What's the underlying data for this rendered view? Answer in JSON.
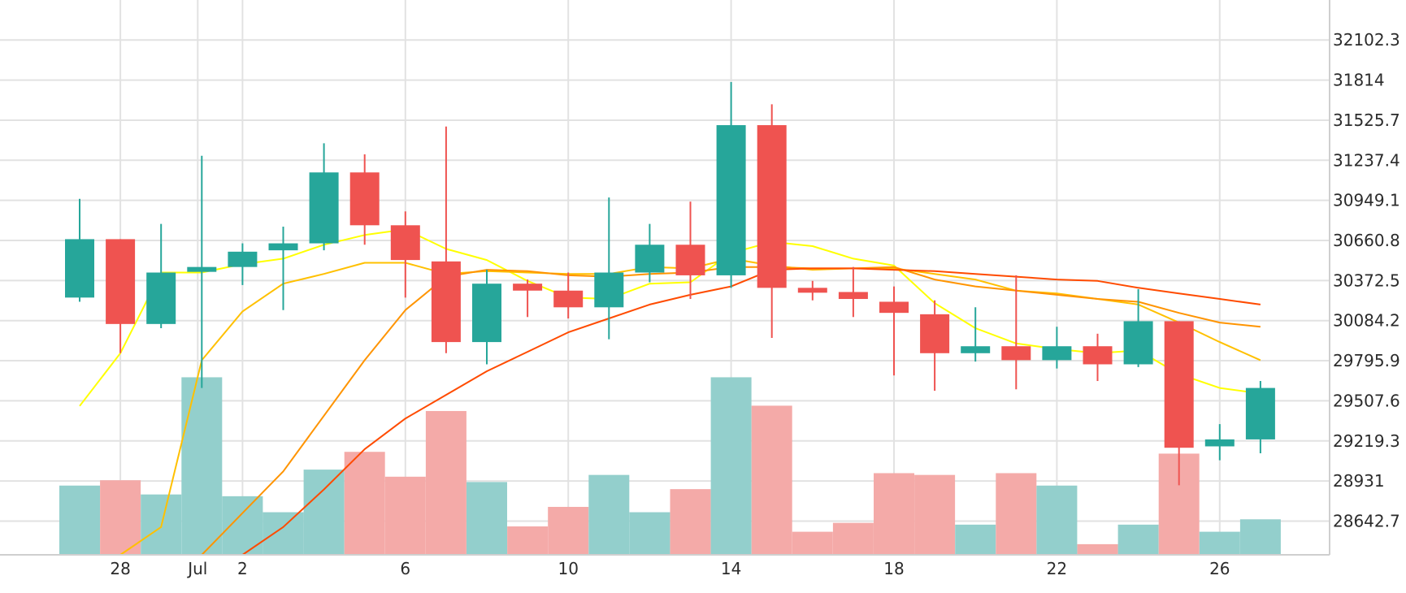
{
  "chart_data": {
    "type": "candlestick",
    "colors": {
      "up": "#26a69a",
      "down": "#ef5350",
      "volume_up": "#93cfcc",
      "volume_down": "#f4aaa8",
      "grid": "#e2e2e2",
      "ma": [
        "#ffff00",
        "#ffc000",
        "#ff9400",
        "#ff4b00"
      ]
    },
    "x_ticks": [
      {
        "label": "28",
        "index": 1
      },
      {
        "label": "Jul",
        "index": 3
      },
      {
        "label": "2",
        "index": 4
      },
      {
        "label": "6",
        "index": 8
      },
      {
        "label": "10",
        "index": 12
      },
      {
        "label": "14",
        "index": 16
      },
      {
        "label": "18",
        "index": 20
      },
      {
        "label": "22",
        "index": 24
      },
      {
        "label": "26",
        "index": 28
      }
    ],
    "y_ticks": [
      "32102.3",
      "31814",
      "31525.7",
      "31237.4",
      "30949.1",
      "30660.8",
      "30372.5",
      "30084.2",
      "29795.9",
      "29507.6",
      "29219.3",
      "28931",
      "28642.7"
    ],
    "y_range": [
      28400,
      32390
    ],
    "volume_max_fraction": 0.32,
    "candles": [
      {
        "date": "Jun 27",
        "open": 30250,
        "high": 30960,
        "low": 30220,
        "close": 30670,
        "volume": 0.39
      },
      {
        "date": "Jun 28",
        "open": 30670,
        "high": 30670,
        "low": 29850,
        "close": 30060,
        "volume": 0.42
      },
      {
        "date": "Jun 29",
        "open": 30060,
        "high": 30780,
        "low": 30030,
        "close": 30430,
        "volume": 0.34
      },
      {
        "date": "Jun 30",
        "open": 30440,
        "high": 31270,
        "low": 29600,
        "close": 30470,
        "volume": 1.0
      },
      {
        "date": "Jul 1",
        "open": 30470,
        "high": 30640,
        "low": 30340,
        "close": 30580,
        "volume": 0.33
      },
      {
        "date": "Jul 2",
        "open": 30590,
        "high": 30760,
        "low": 30160,
        "close": 30640,
        "volume": 0.24
      },
      {
        "date": "Jul 3",
        "open": 30640,
        "high": 31360,
        "low": 30590,
        "close": 31150,
        "volume": 0.48
      },
      {
        "date": "Jul 4",
        "open": 31150,
        "high": 31280,
        "low": 30630,
        "close": 30770,
        "volume": 0.58
      },
      {
        "date": "Jul 5",
        "open": 30770,
        "high": 30870,
        "low": 30250,
        "close": 30520,
        "volume": 0.44
      },
      {
        "date": "Jul 6",
        "open": 30510,
        "high": 31480,
        "low": 29850,
        "close": 29930,
        "volume": 0.81
      },
      {
        "date": "Jul 7",
        "open": 29930,
        "high": 30450,
        "low": 29770,
        "close": 30350,
        "volume": 0.41
      },
      {
        "date": "Jul 8",
        "open": 30350,
        "high": 30380,
        "low": 30110,
        "close": 30300,
        "volume": 0.16
      },
      {
        "date": "Jul 9",
        "open": 30300,
        "high": 30430,
        "low": 30100,
        "close": 30180,
        "volume": 0.27
      },
      {
        "date": "Jul 10",
        "open": 30180,
        "high": 30970,
        "low": 29950,
        "close": 30430,
        "volume": 0.45
      },
      {
        "date": "Jul 11",
        "open": 30430,
        "high": 30780,
        "low": 30360,
        "close": 30630,
        "volume": 0.24
      },
      {
        "date": "Jul 12",
        "open": 30630,
        "high": 30940,
        "low": 30240,
        "close": 30410,
        "volume": 0.37
      },
      {
        "date": "Jul 13",
        "open": 30410,
        "high": 31800,
        "low": 30320,
        "close": 31490,
        "volume": 1.0
      },
      {
        "date": "Jul 14",
        "open": 31490,
        "high": 31640,
        "low": 29960,
        "close": 30320,
        "volume": 0.84
      },
      {
        "date": "Jul 15",
        "open": 30320,
        "high": 30370,
        "low": 30230,
        "close": 30290,
        "volume": 0.13
      },
      {
        "date": "Jul 16",
        "open": 30290,
        "high": 30470,
        "low": 30110,
        "close": 30240,
        "volume": 0.18
      },
      {
        "date": "Jul 17",
        "open": 30220,
        "high": 30330,
        "low": 29690,
        "close": 30140,
        "volume": 0.46
      },
      {
        "date": "Jul 18",
        "open": 30130,
        "high": 30230,
        "low": 29580,
        "close": 29850,
        "volume": 0.45
      },
      {
        "date": "Jul 19",
        "open": 29850,
        "high": 30180,
        "low": 29790,
        "close": 29900,
        "volume": 0.17
      },
      {
        "date": "Jul 20",
        "open": 29900,
        "high": 30410,
        "low": 29590,
        "close": 29800,
        "volume": 0.46
      },
      {
        "date": "Jul 21",
        "open": 29800,
        "high": 30040,
        "low": 29740,
        "close": 29900,
        "volume": 0.39
      },
      {
        "date": "Jul 22",
        "open": 29900,
        "high": 29990,
        "low": 29650,
        "close": 29770,
        "volume": 0.06
      },
      {
        "date": "Jul 23",
        "open": 29770,
        "high": 30310,
        "low": 29750,
        "close": 30080,
        "volume": 0.17
      },
      {
        "date": "Jul 24",
        "open": 30080,
        "high": 30080,
        "low": 28900,
        "close": 29170,
        "volume": 0.57
      },
      {
        "date": "Jul 25",
        "open": 29180,
        "high": 29340,
        "low": 29080,
        "close": 29230,
        "volume": 0.13
      },
      {
        "date": "Jul 26",
        "open": 29230,
        "high": 29650,
        "low": 29130,
        "close": 29600,
        "volume": 0.2
      }
    ],
    "moving_averages": [
      {
        "color": "#ffff00",
        "values": [
          29470,
          29850,
          30430,
          30430,
          30490,
          30530,
          30630,
          30700,
          30740,
          30600,
          30520,
          30370,
          30250,
          30240,
          30350,
          30360,
          30570,
          30650,
          30620,
          30530,
          30480,
          30210,
          30030,
          29920,
          29880,
          29850,
          29870,
          29700,
          29600,
          29560
        ]
      },
      {
        "color": "#ffc000",
        "values": [
          null,
          28400,
          28600,
          29800,
          30150,
          30350,
          30420,
          30500,
          30500,
          30420,
          30440,
          30430,
          30420,
          30420,
          30470,
          30460,
          30530,
          30480,
          30450,
          30460,
          30460,
          30420,
          30380,
          30300,
          30280,
          30240,
          30200,
          30070,
          29930,
          29800
        ]
      },
      {
        "color": "#ff9400",
        "values": [
          null,
          null,
          null,
          28400,
          28700,
          29000,
          29400,
          29800,
          30160,
          30400,
          30450,
          30440,
          30410,
          30400,
          30420,
          30430,
          30470,
          30470,
          30460,
          30460,
          30470,
          30380,
          30330,
          30300,
          30270,
          30240,
          30220,
          30140,
          30070,
          30040
        ]
      },
      {
        "color": "#ff4b00",
        "values": [
          null,
          null,
          null,
          null,
          28400,
          28600,
          28870,
          29160,
          29380,
          29550,
          29720,
          29860,
          30000,
          30100,
          30200,
          30270,
          30330,
          30450,
          30460,
          30460,
          30450,
          30440,
          30420,
          30400,
          30380,
          30370,
          30320,
          30280,
          30240,
          30200
        ]
      }
    ]
  }
}
